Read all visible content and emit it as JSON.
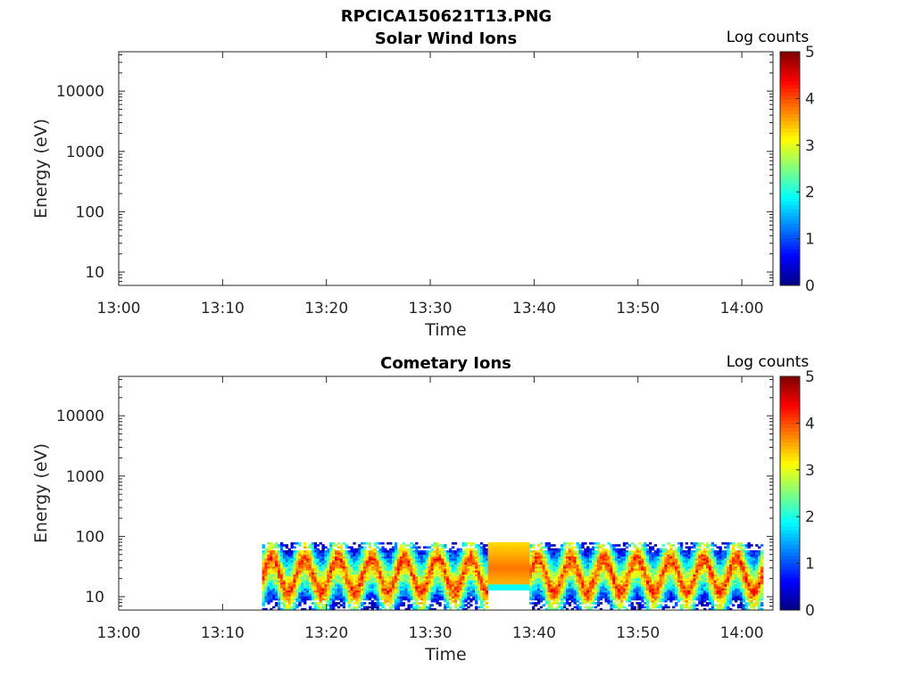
{
  "figure_title": "RPCICA150621T13.PNG",
  "chart_data": [
    {
      "type": "heatmap",
      "title": "Solar Wind Ions",
      "xlabel": "Time",
      "ylabel": "Energy (eV)",
      "y_scale": "log",
      "x_range": [
        "13:00",
        "14:03"
      ],
      "ylim": [
        6,
        45000
      ],
      "x_ticks": [
        "13:00",
        "13:10",
        "13:20",
        "13:30",
        "13:40",
        "13:50",
        "14:00"
      ],
      "y_ticks": [
        "10",
        "100",
        "1000",
        "10000"
      ],
      "colorbar": {
        "label": "Log counts",
        "min": 0,
        "max": 5,
        "ticks": [
          "0",
          "1",
          "2",
          "3",
          "4",
          "5"
        ],
        "colormap": "jet"
      },
      "data": []
    },
    {
      "type": "heatmap",
      "title": "Cometary Ions",
      "xlabel": "Time",
      "ylabel": "Energy (eV)",
      "y_scale": "log",
      "x_range": [
        "13:00",
        "14:03"
      ],
      "ylim": [
        6,
        45000
      ],
      "x_ticks": [
        "13:00",
        "13:10",
        "13:20",
        "13:30",
        "13:40",
        "13:50",
        "14:00"
      ],
      "y_ticks": [
        "10",
        "100",
        "1000",
        "10000"
      ],
      "colorbar": {
        "label": "Log counts",
        "min": 0,
        "max": 5,
        "ticks": [
          "0",
          "1",
          "2",
          "3",
          "4",
          "5"
        ],
        "colormap": "jet"
      },
      "data": {
        "time_start": "13:13.8",
        "time_end": "14:02",
        "energy_min_eV": 6,
        "energy_max_eV": 80,
        "peak_energy_eV": 30,
        "peak_log_counts": 4.2,
        "oscillation_period_min": 3.2,
        "saturated_interval": {
          "start": "13:35.5",
          "end": "13:39.5",
          "energy_range_eV": [
            12,
            80
          ],
          "log_counts": 3.8
        }
      }
    }
  ]
}
